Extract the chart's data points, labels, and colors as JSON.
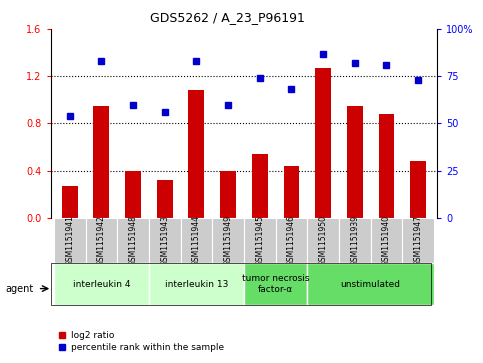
{
  "title": "GDS5262 / A_23_P96191",
  "samples": [
    "GSM1151941",
    "GSM1151942",
    "GSM1151948",
    "GSM1151943",
    "GSM1151944",
    "GSM1151949",
    "GSM1151945",
    "GSM1151946",
    "GSM1151950",
    "GSM1151939",
    "GSM1151940",
    "GSM1151947"
  ],
  "log2_ratio": [
    0.27,
    0.95,
    0.4,
    0.32,
    1.08,
    0.4,
    0.54,
    0.44,
    1.27,
    0.95,
    0.88,
    0.48
  ],
  "percentile": [
    54,
    83,
    60,
    56,
    83,
    60,
    74,
    68,
    87,
    82,
    81,
    73
  ],
  "ylim_left": [
    0,
    1.6
  ],
  "ylim_right": [
    0,
    100
  ],
  "yticks_left": [
    0,
    0.4,
    0.8,
    1.2,
    1.6
  ],
  "yticks_right": [
    0,
    25,
    50,
    75,
    100
  ],
  "groups": [
    {
      "label": "interleukin 4",
      "start": 0,
      "end": 3,
      "color": "#ccffcc"
    },
    {
      "label": "interleukin 13",
      "start": 3,
      "end": 6,
      "color": "#ccffcc"
    },
    {
      "label": "tumor necrosis\nfactor-α",
      "start": 6,
      "end": 8,
      "color": "#66dd66"
    },
    {
      "label": "unstimulated",
      "start": 8,
      "end": 12,
      "color": "#66dd66"
    }
  ],
  "bar_color": "#cc0000",
  "dot_color": "#0000cc",
  "agent_label": "agent"
}
